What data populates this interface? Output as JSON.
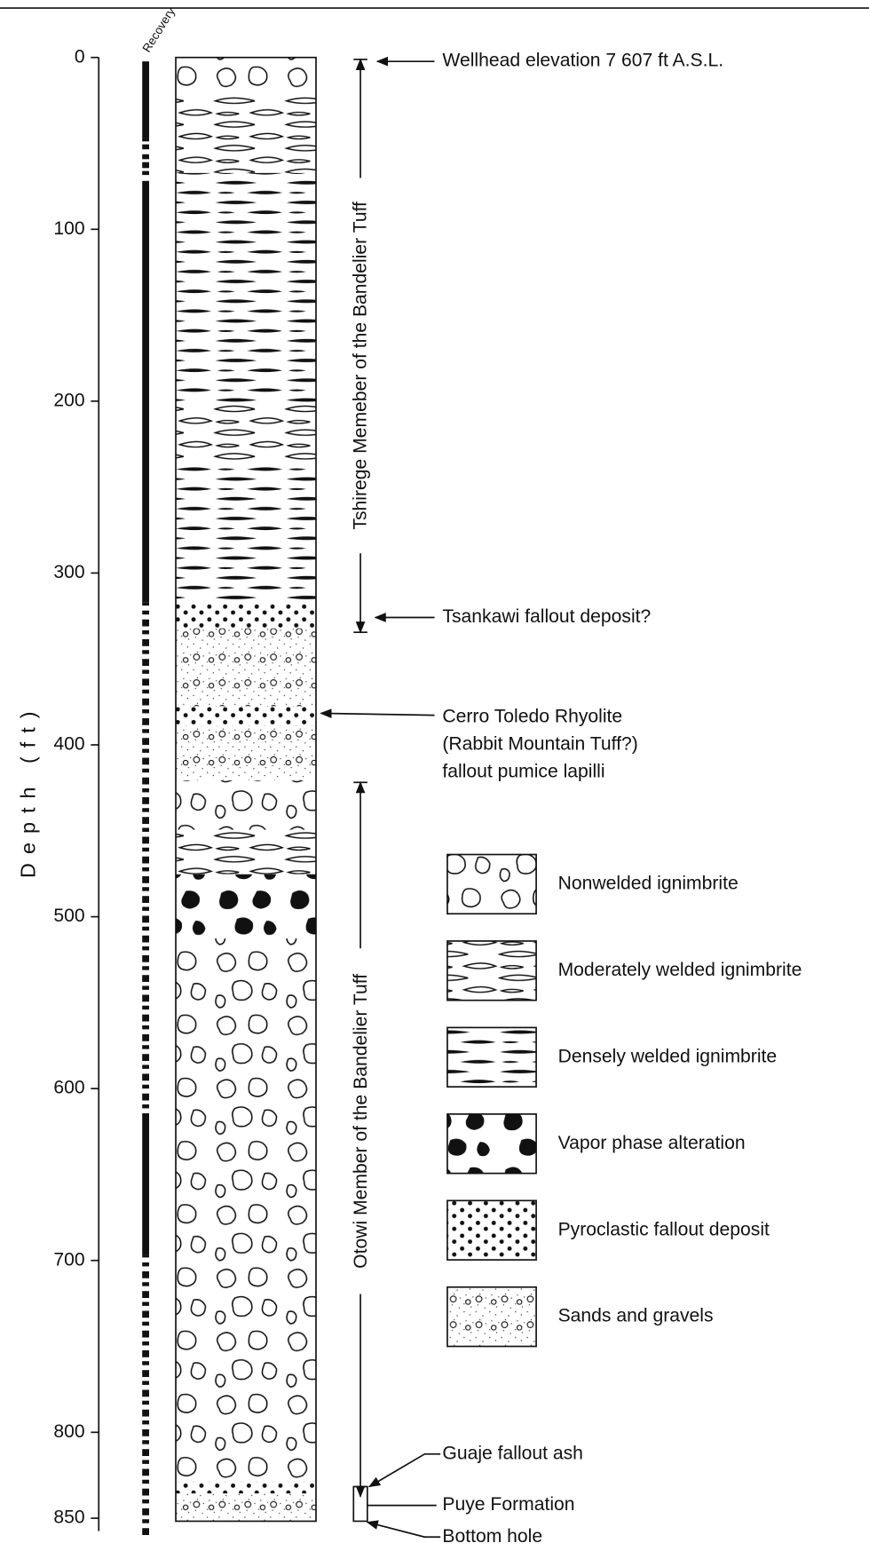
{
  "recovery_label": "Recovery",
  "depth_axis": {
    "label": "Depth (ft)",
    "ticks": [
      0,
      100,
      200,
      300,
      400,
      500,
      600,
      700,
      800,
      850
    ]
  },
  "members": [
    "Tshirege Memeber of the Bandelier Tuff",
    "Otowi Member of the Bandelier Tuff"
  ],
  "annotations": {
    "wellhead": "Wellhead elevation 7 607 ft A.S.L.",
    "tsankawi": "Tsankawi fallout deposit?",
    "cerro_toledo": [
      "Cerro Toledo Rhyolite",
      "(Rabbit Mountain Tuff?)",
      "fallout pumice lapilli"
    ],
    "guaje": "Guaje fallout ash",
    "puye": "Puye Formation",
    "bottom": "Bottom hole"
  },
  "legend": [
    "Nonwelded ignimbrite",
    "Moderately welded ignimbrite",
    "Densely welded ignimbrite",
    "Vapor phase alteration",
    "Pyroclastic fallout deposit",
    "Sands and gravels"
  ]
}
